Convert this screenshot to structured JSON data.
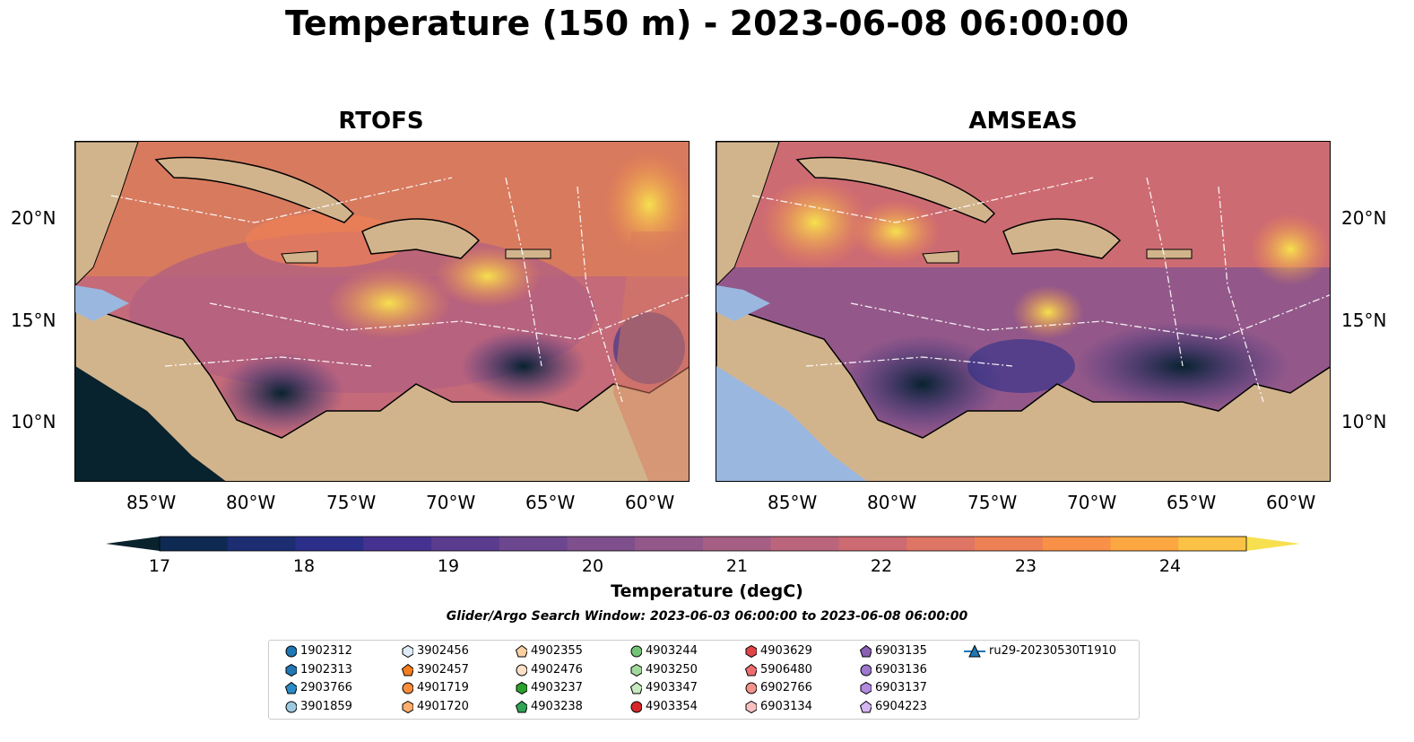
{
  "title": "Temperature (150 m) - 2023-06-08 06:00:00",
  "panels": [
    {
      "title": "RTOFS"
    },
    {
      "title": "AMSEAS"
    }
  ],
  "lat_ticks": [
    "20°N",
    "15°N",
    "10°N"
  ],
  "lon_ticks": [
    "85°W",
    "80°W",
    "75°W",
    "70°W",
    "65°W",
    "60°W"
  ],
  "colorbar": {
    "label": "Temperature (degC)",
    "ticks": [
      "17",
      "18",
      "19",
      "20",
      "21",
      "22",
      "23",
      "24"
    ],
    "colors": [
      "#08222e",
      "#0f2a52",
      "#1d2d72",
      "#2c2f8a",
      "#45318f",
      "#5a3b8e",
      "#6c468e",
      "#7f4f8d",
      "#935889",
      "#a65f84",
      "#bb657c",
      "#cd6b72",
      "#de7565",
      "#ee8055",
      "#f89048",
      "#fca742",
      "#fcc245",
      "#f6e04f"
    ]
  },
  "search_window": "Glider/Argo Search Window: 2023-06-03 06:00:00 to 2023-06-08 06:00:00",
  "legend": [
    {
      "label": "1902312",
      "shape": "circle",
      "color": "#1f77b4"
    },
    {
      "label": "1902313",
      "shape": "hexagon",
      "color": "#1f77b4"
    },
    {
      "label": "2903766",
      "shape": "pentagon",
      "color": "#2a8cc6"
    },
    {
      "label": "3901859",
      "shape": "circle",
      "color": "#9ecae1"
    },
    {
      "label": "3902456",
      "shape": "hexagon",
      "color": "#deebf7"
    },
    {
      "label": "3902457",
      "shape": "pentagon",
      "color": "#f47d1f"
    },
    {
      "label": "4901719",
      "shape": "circle",
      "color": "#fd8d3c"
    },
    {
      "label": "4901720",
      "shape": "hexagon",
      "color": "#fdae6b"
    },
    {
      "label": "4902355",
      "shape": "pentagon",
      "color": "#fdd0a2"
    },
    {
      "label": "4902476",
      "shape": "circle",
      "color": "#fde0c5"
    },
    {
      "label": "4903237",
      "shape": "hexagon",
      "color": "#2ca02c"
    },
    {
      "label": "4903238",
      "shape": "pentagon",
      "color": "#31a354"
    },
    {
      "label": "4903244",
      "shape": "circle",
      "color": "#74c476"
    },
    {
      "label": "4903250",
      "shape": "hexagon",
      "color": "#a1d99b"
    },
    {
      "label": "4903347",
      "shape": "pentagon",
      "color": "#c7e9c0"
    },
    {
      "label": "4903354",
      "shape": "circle",
      "color": "#d62728"
    },
    {
      "label": "4903629",
      "shape": "hexagon",
      "color": "#e0454a"
    },
    {
      "label": "5906480",
      "shape": "pentagon",
      "color": "#ee6e6f"
    },
    {
      "label": "6902766",
      "shape": "circle",
      "color": "#f4928c"
    },
    {
      "label": "6903134",
      "shape": "hexagon",
      "color": "#f9c0c0"
    },
    {
      "label": "6903135",
      "shape": "pentagon",
      "color": "#8a5fb4"
    },
    {
      "label": "6903136",
      "shape": "circle",
      "color": "#9e77cf"
    },
    {
      "label": "6903137",
      "shape": "hexagon",
      "color": "#b28be0"
    },
    {
      "label": "6904223",
      "shape": "pentagon",
      "color": "#d4b5f2"
    },
    {
      "label": "ru29-20230530T1910",
      "shape": "triangle-line",
      "color": "#1f77b4"
    }
  ]
}
